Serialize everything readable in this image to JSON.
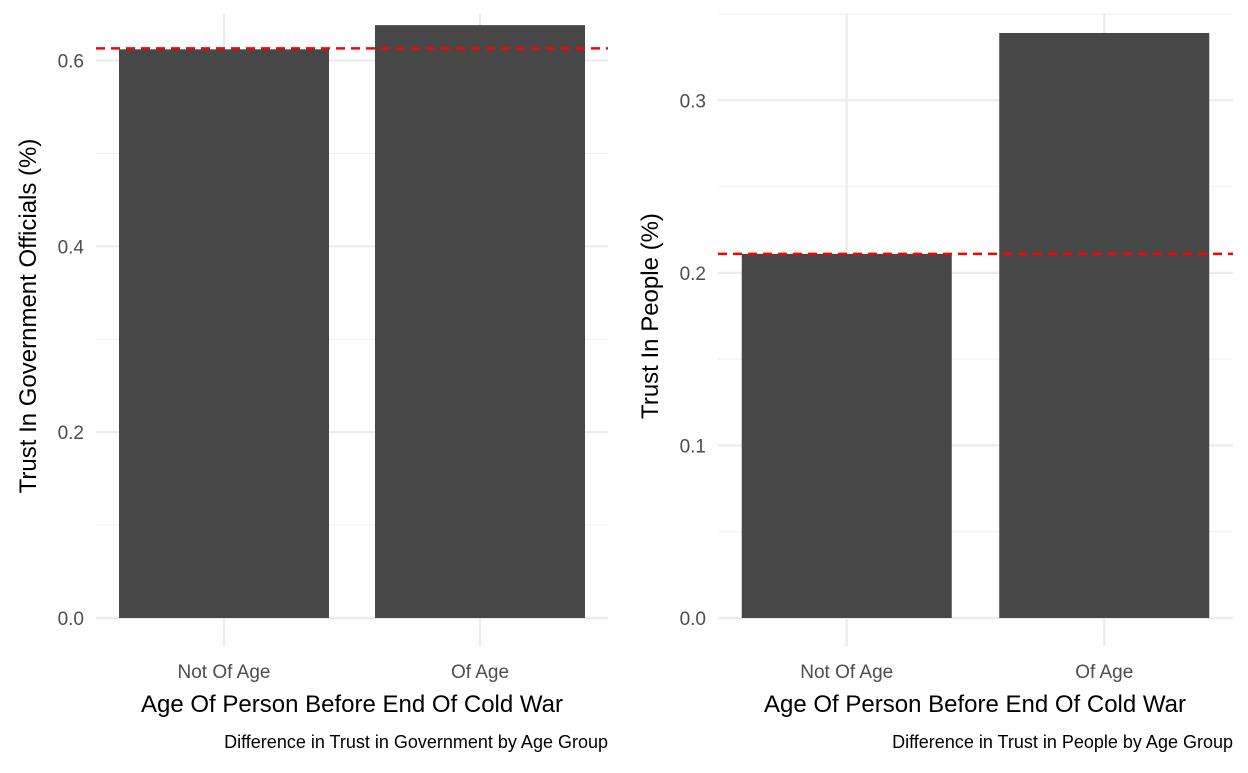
{
  "chart_data": [
    {
      "type": "bar",
      "categories": [
        "Not Of Age",
        "Of Age"
      ],
      "values": [
        0.612,
        0.638
      ],
      "reference_line": {
        "value": 0.613,
        "style": "dashed",
        "color": "#ff0000"
      },
      "xlabel": "Age Of Person Before End Of Cold War",
      "ylabel": "Trust In Government Officials (%)",
      "caption": "Difference in Trust in Government by Age Group",
      "ylim": [
        0,
        0.65
      ],
      "yticks": [
        0.0,
        0.2,
        0.4,
        0.6
      ],
      "ytick_labels": [
        "0.0",
        "0.2",
        "0.4",
        "0.6"
      ],
      "grid": true,
      "bar_color": "#474747"
    },
    {
      "type": "bar",
      "categories": [
        "Not Of Age",
        "Of Age"
      ],
      "values": [
        0.211,
        0.339
      ],
      "reference_line": {
        "value": 0.211,
        "style": "dashed",
        "color": "#ff0000"
      },
      "xlabel": "Age Of Person Before End Of Cold War",
      "ylabel": "Trust In People (%)",
      "caption": "Difference in Trust in People by Age Group",
      "ylim": [
        0,
        0.35
      ],
      "yticks": [
        0.0,
        0.1,
        0.2,
        0.3
      ],
      "ytick_labels": [
        "0.0",
        "0.1",
        "0.2",
        "0.3"
      ],
      "grid": true,
      "bar_color": "#474747"
    }
  ]
}
